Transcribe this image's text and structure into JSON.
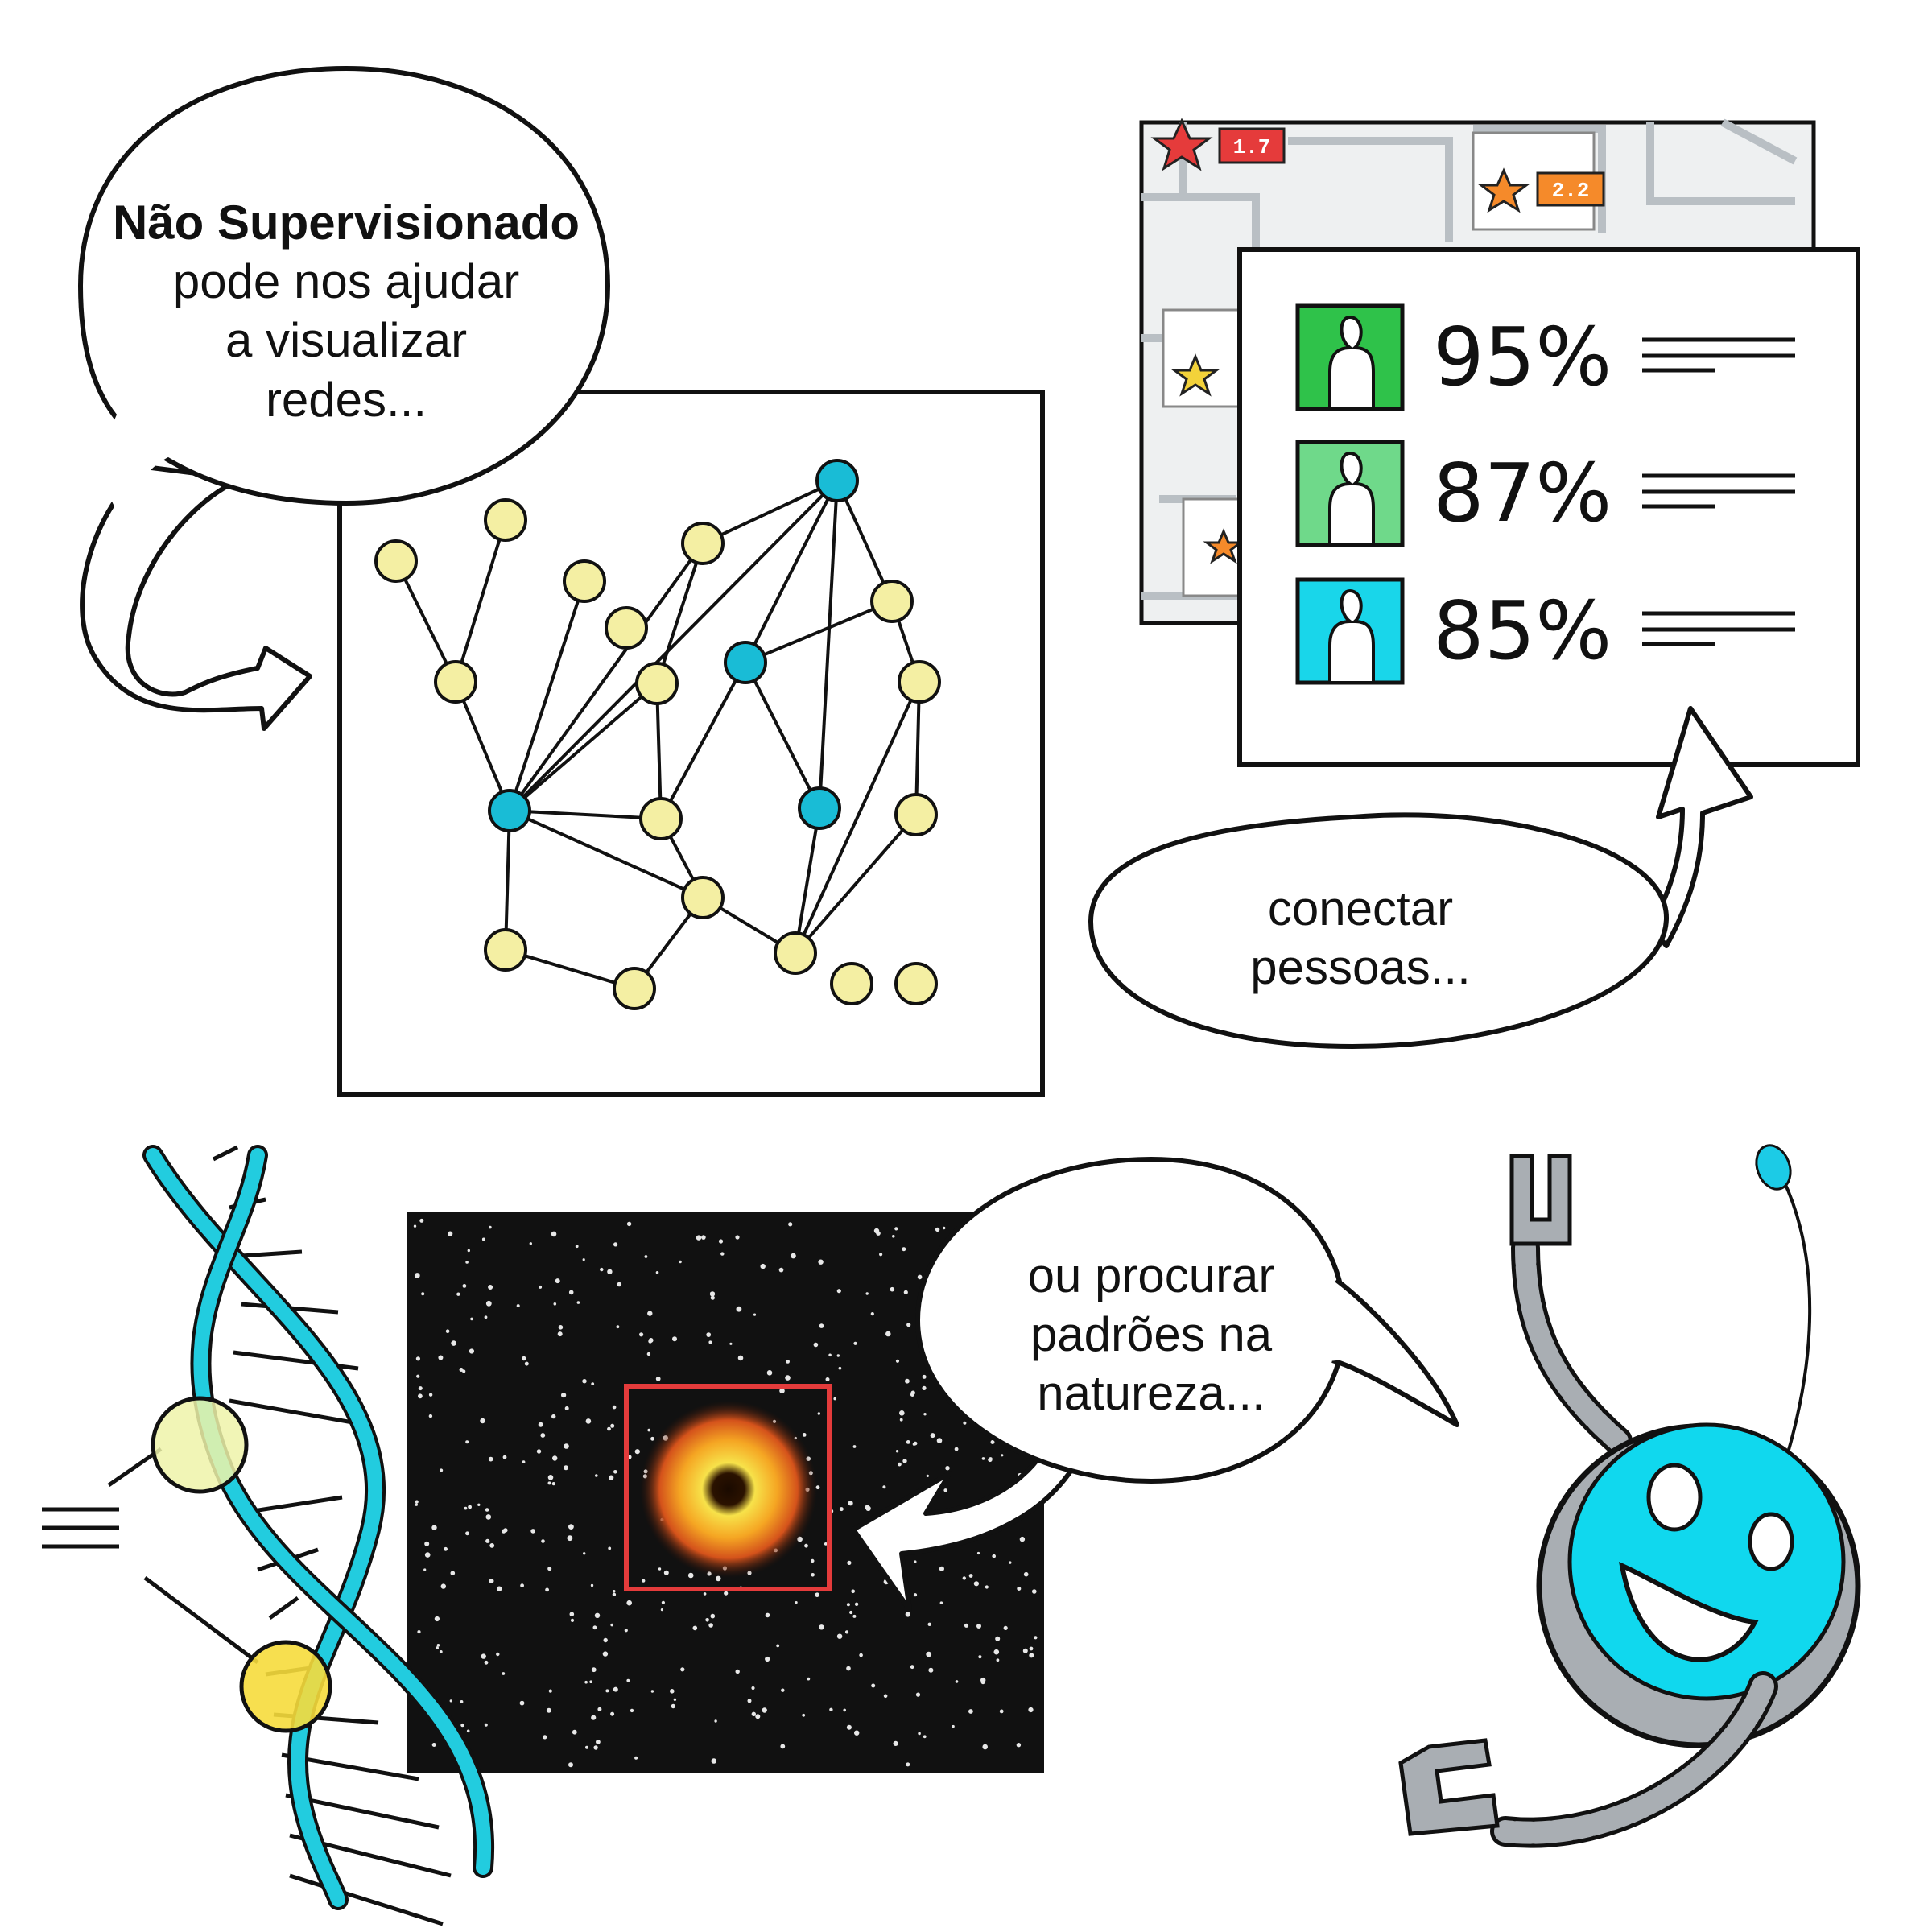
{
  "bubbles": {
    "intro": {
      "title": "Não Supervisionado",
      "lines": [
        "pode nos ajudar",
        "a visualizar",
        "redes..."
      ]
    },
    "connect": {
      "lines": [
        "conectar",
        "pessoas..."
      ]
    },
    "nature": {
      "lines": [
        "ou procurar",
        "padrões na",
        "natureza..."
      ]
    }
  },
  "matches": [
    {
      "percent": "95%",
      "color": "#2fc24a"
    },
    {
      "percent": "87%",
      "color": "#6fd98a"
    },
    {
      "percent": "85%",
      "color": "#19d6ea"
    }
  ],
  "map_ratings": [
    "1.7",
    "2.2"
  ],
  "colors": {
    "node_yellow": "#f4efa3",
    "node_teal": "#19bcd6",
    "dna_cyan": "#22ccdf",
    "robot_cyan": "#10d8ee",
    "highlight_red": "#e43b3b"
  }
}
